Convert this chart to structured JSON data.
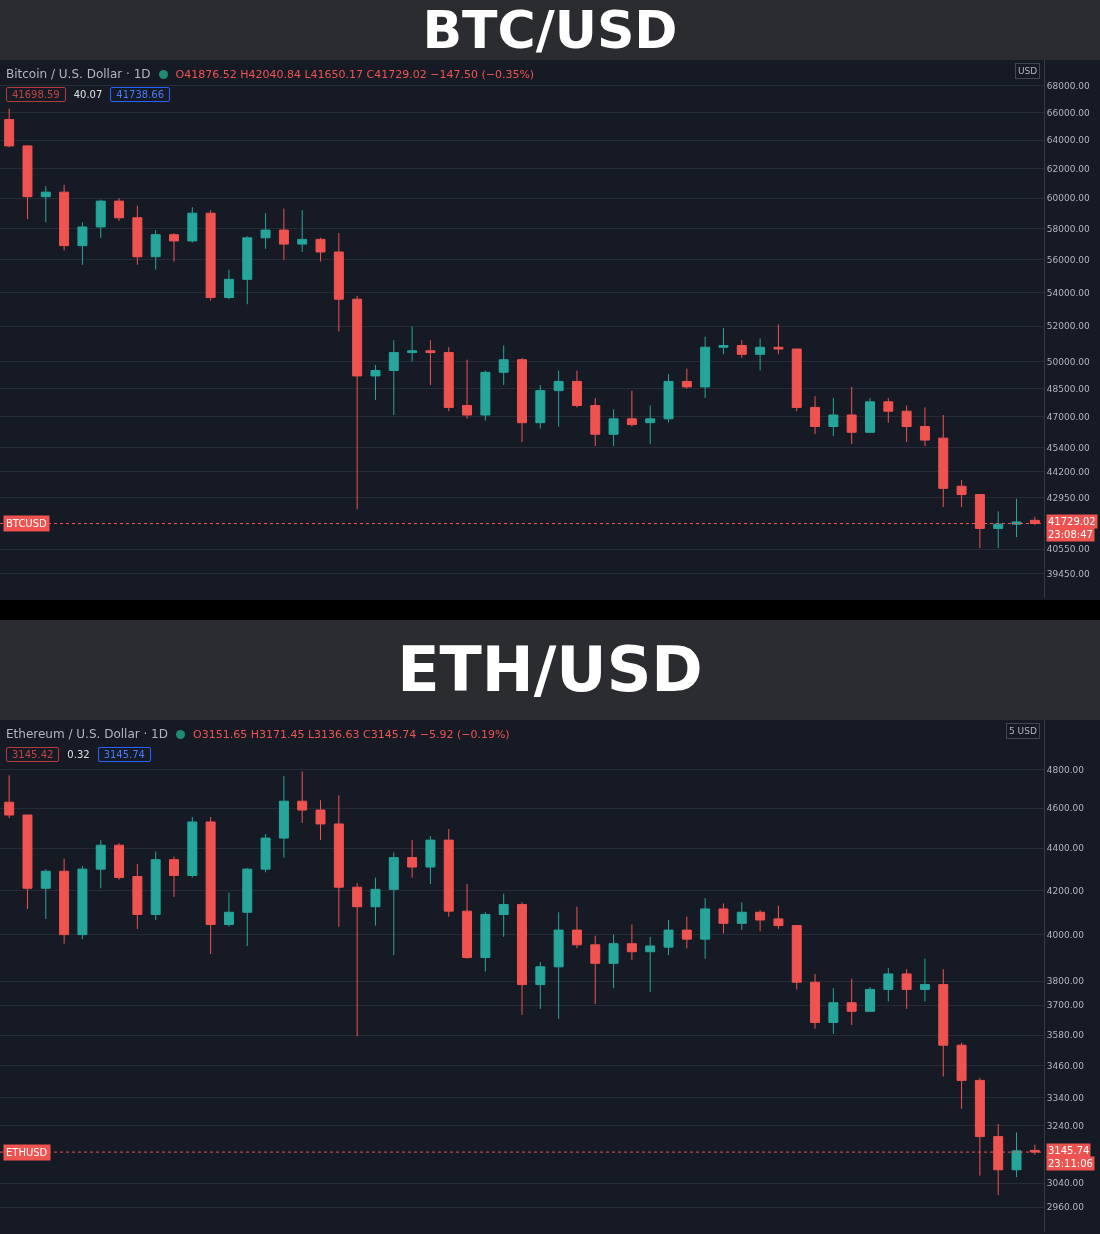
{
  "chart_data": [
    {
      "type": "candlestick",
      "title": "BTC/USD",
      "subtitle": "Bitcoin / U.S. Dollar · 1D",
      "categories": [
        null,
        null,
        null,
        null,
        null,
        null,
        null,
        null,
        null,
        null,
        null,
        null,
        null,
        null,
        null,
        null,
        null,
        null,
        null,
        null,
        null,
        null,
        null,
        null,
        null,
        null,
        null,
        null,
        null,
        null,
        null,
        null,
        null,
        null,
        null,
        null,
        null,
        null,
        null,
        null,
        null,
        null,
        null,
        null,
        null,
        null,
        null,
        null,
        null,
        null,
        null,
        null,
        null,
        null,
        null,
        null,
        null
      ],
      "ohlc": [
        [
          65500,
          66300,
          63500,
          63600
        ],
        [
          63600,
          63650,
          58600,
          60100
        ],
        [
          60100,
          60800,
          58400,
          60400
        ],
        [
          60400,
          60900,
          56600,
          56900
        ],
        [
          56900,
          58400,
          55700,
          58100
        ],
        [
          58100,
          59900,
          57400,
          59800
        ],
        [
          59800,
          60000,
          58500,
          58700
        ],
        [
          58700,
          59500,
          55700,
          56200
        ],
        [
          56200,
          57900,
          55400,
          57600
        ],
        [
          57600,
          57700,
          55900,
          57200
        ],
        [
          57200,
          59400,
          57100,
          59000
        ],
        [
          59000,
          59200,
          53500,
          53700
        ],
        [
          53700,
          55400,
          53600,
          54800
        ],
        [
          54800,
          57500,
          53300,
          57400
        ],
        [
          57400,
          59000,
          56700,
          57900
        ],
        [
          57900,
          59300,
          56000,
          57000
        ],
        [
          57000,
          59200,
          56500,
          57300
        ],
        [
          57300,
          57400,
          55900,
          56500
        ],
        [
          56500,
          57700,
          51700,
          53600
        ],
        [
          53600,
          53800,
          42400,
          49200
        ],
        [
          49200,
          49800,
          47900,
          49500
        ],
        [
          49500,
          51200,
          47100,
          50500
        ],
        [
          50500,
          52000,
          50000,
          50600
        ],
        [
          50600,
          51200,
          48700,
          50500
        ],
        [
          50500,
          50800,
          47300,
          47500
        ],
        [
          47600,
          50100,
          46900,
          47100
        ],
        [
          47100,
          49500,
          46800,
          49400
        ],
        [
          49400,
          50900,
          48700,
          50100
        ],
        [
          50100,
          50200,
          45700,
          46700
        ],
        [
          46700,
          48700,
          46400,
          48400
        ],
        [
          48400,
          49500,
          46500,
          48900
        ],
        [
          48900,
          49500,
          47500,
          47600
        ],
        [
          47600,
          48000,
          45500,
          46100
        ],
        [
          46100,
          47400,
          45500,
          46900
        ],
        [
          46900,
          48400,
          46500,
          46600
        ],
        [
          46700,
          47600,
          45600,
          46900
        ],
        [
          46900,
          49300,
          46700,
          48900
        ],
        [
          48900,
          49600,
          48500,
          48600
        ],
        [
          48600,
          51400,
          48000,
          50800
        ],
        [
          50800,
          51900,
          50400,
          50900
        ],
        [
          50900,
          51200,
          50200,
          50400
        ],
        [
          50400,
          51300,
          49500,
          50800
        ],
        [
          50800,
          52100,
          50400,
          50700
        ],
        [
          50700,
          50700,
          47300,
          47500
        ],
        [
          47500,
          48100,
          46100,
          46500
        ],
        [
          46500,
          48000,
          46000,
          47100
        ],
        [
          47100,
          48600,
          45600,
          46200
        ],
        [
          46200,
          48000,
          46200,
          47800
        ],
        [
          47800,
          48000,
          46700,
          47300
        ],
        [
          47300,
          47600,
          45700,
          46500
        ],
        [
          46500,
          47500,
          45500,
          45800
        ],
        [
          45900,
          47100,
          42500,
          43400
        ],
        [
          43500,
          43800,
          42500,
          43100
        ],
        [
          43100,
          43100,
          40600,
          41500
        ],
        [
          41500,
          42300,
          40600,
          41700
        ],
        [
          41700,
          42900,
          41100,
          41800
        ],
        [
          41876.52,
          42040.84,
          41650.17,
          41729.02
        ]
      ],
      "colors": [
        "#ef5350",
        "#ef5350",
        "#26a69a",
        "#ef5350",
        "#26a69a",
        "#26a69a",
        "#ef5350",
        "#ef5350",
        "#26a69a",
        "#ef5350",
        "#26a69a",
        "#ef5350",
        "#26a69a",
        "#26a69a",
        "#26a69a",
        "#ef5350",
        "#26a69a",
        "#ef5350",
        "#ef5350",
        "#ef5350",
        "#26a69a",
        "#26a69a",
        "#26a69a",
        "#ef5350",
        "#ef5350",
        "#ef5350",
        "#26a69a",
        "#26a69a",
        "#ef5350",
        "#26a69a",
        "#26a69a",
        "#ef5350",
        "#ef5350",
        "#26a69a",
        "#ef5350",
        "#26a69a",
        "#26a69a",
        "#ef5350",
        "#26a69a",
        "#26a69a",
        "#ef5350",
        "#26a69a",
        "#ef5350",
        "#ef5350",
        "#ef5350",
        "#26a69a",
        "#ef5350",
        "#26a69a",
        "#ef5350",
        "#ef5350",
        "#ef5350",
        "#ef5350",
        "#ef5350",
        "#ef5350",
        "#26a69a",
        "#26a69a",
        "#ef5350"
      ],
      "log": true,
      "ylim": [
        38400,
        70000
      ],
      "yticks": [
        {
          "value": 68000,
          "label": "68000.00"
        },
        {
          "value": 66000,
          "label": "66000.00"
        },
        {
          "value": 64000,
          "label": "64000.00"
        },
        {
          "value": 62000,
          "label": "62000.00"
        },
        {
          "value": 60000,
          "label": "60000.00"
        },
        {
          "value": 58000,
          "label": "58000.00"
        },
        {
          "value": 56000,
          "label": "56000.00"
        },
        {
          "value": 54000,
          "label": "54000.00"
        },
        {
          "value": 52000,
          "label": "52000.00"
        },
        {
          "value": 50000,
          "label": "50000.00"
        },
        {
          "value": 48500,
          "label": "48500.00"
        },
        {
          "value": 47000,
          "label": "47000.00"
        },
        {
          "value": 45400,
          "label": "45400.00"
        },
        {
          "value": 44200,
          "label": "44200.00"
        },
        {
          "value": 42950,
          "label": "42950.00"
        },
        {
          "value": 40550,
          "label": "40550.00"
        },
        {
          "value": 39450,
          "label": "39450.00"
        }
      ],
      "grid": "y",
      "tick_labels": "y",
      "ref_lines": [
        {
          "axis": "y",
          "value": 41729.02,
          "label": "BTCUSD",
          "color": "#ef5350",
          "line_style": "dotted"
        }
      ],
      "annotations": [
        "O41876.52 H42040.84 L41650.17 C41729.02 −147.50 (−0.35%)",
        "41698.59",
        "40.07",
        "41738.66",
        "41729.02",
        "23:08:47",
        "USD"
      ]
    },
    {
      "type": "candlestick",
      "title": "ETH/USD",
      "subtitle": "Ethereum / U.S. Dollar · 1D",
      "categories": [
        null,
        null,
        null,
        null,
        null,
        null,
        null,
        null,
        null,
        null,
        null,
        null,
        null,
        null,
        null,
        null,
        null,
        null,
        null,
        null,
        null,
        null,
        null,
        null,
        null,
        null,
        null,
        null,
        null,
        null,
        null,
        null,
        null,
        null,
        null,
        null,
        null,
        null,
        null,
        null,
        null,
        null,
        null,
        null,
        null,
        null,
        null,
        null,
        null,
        null,
        null,
        null,
        null,
        null,
        null,
        null,
        null
      ],
      "ohlc": [
        [
          4630,
          4770,
          4550,
          4565
        ],
        [
          4565,
          4565,
          4115,
          4210
        ],
        [
          4210,
          4300,
          4070,
          4290
        ],
        [
          4290,
          4350,
          3960,
          4000
        ],
        [
          4000,
          4315,
          3980,
          4300
        ],
        [
          4300,
          4440,
          4210,
          4415
        ],
        [
          4415,
          4425,
          4250,
          4260
        ],
        [
          4265,
          4325,
          4025,
          4090
        ],
        [
          4090,
          4385,
          4065,
          4345
        ],
        [
          4345,
          4360,
          4170,
          4270
        ],
        [
          4270,
          4555,
          4260,
          4530
        ],
        [
          4530,
          4555,
          3915,
          4045
        ],
        [
          4045,
          4190,
          4035,
          4100
        ],
        [
          4100,
          4305,
          3950,
          4300
        ],
        [
          4300,
          4470,
          4285,
          4450
        ],
        [
          4450,
          4765,
          4355,
          4635
        ],
        [
          4635,
          4790,
          4525,
          4590
        ],
        [
          4590,
          4640,
          4440,
          4520
        ],
        [
          4520,
          4665,
          4035,
          4215
        ],
        [
          4215,
          4235,
          3575,
          4125
        ],
        [
          4125,
          4260,
          4040,
          4205
        ],
        [
          4205,
          4380,
          3910,
          4355
        ],
        [
          4355,
          4440,
          4260,
          4310
        ],
        [
          4310,
          4460,
          4230,
          4440
        ],
        [
          4440,
          4495,
          4080,
          4105
        ],
        [
          4105,
          4230,
          3895,
          3900
        ],
        [
          3900,
          4100,
          3840,
          4090
        ],
        [
          4090,
          4185,
          3990,
          4135
        ],
        [
          4135,
          4145,
          3660,
          3785
        ],
        [
          3785,
          3880,
          3685,
          3860
        ],
        [
          3860,
          4100,
          3645,
          4020
        ],
        [
          4020,
          4125,
          3940,
          3955
        ],
        [
          3955,
          3995,
          3705,
          3875
        ],
        [
          3875,
          4000,
          3770,
          3960
        ],
        [
          3960,
          4045,
          3890,
          3925
        ],
        [
          3925,
          3990,
          3755,
          3950
        ],
        [
          3945,
          4065,
          3910,
          4020
        ],
        [
          4020,
          4080,
          3940,
          3980
        ],
        [
          3980,
          4165,
          3895,
          4115
        ],
        [
          4115,
          4140,
          4005,
          4050
        ],
        [
          4050,
          4145,
          4020,
          4100
        ],
        [
          4100,
          4110,
          4015,
          4065
        ],
        [
          4070,
          4130,
          4025,
          4040
        ],
        [
          4040,
          4040,
          3765,
          3795
        ],
        [
          3795,
          3830,
          3605,
          3630
        ],
        [
          3630,
          3770,
          3585,
          3710
        ],
        [
          3710,
          3810,
          3620,
          3675
        ],
        [
          3675,
          3775,
          3675,
          3765
        ],
        [
          3765,
          3855,
          3715,
          3830
        ],
        [
          3830,
          3850,
          3685,
          3765
        ],
        [
          3765,
          3895,
          3715,
          3785
        ],
        [
          3785,
          3850,
          3420,
          3540
        ],
        [
          3540,
          3550,
          3300,
          3405
        ],
        [
          3405,
          3415,
          3065,
          3200
        ],
        [
          3200,
          3245,
          3000,
          3085
        ],
        [
          3085,
          3215,
          3060,
          3150
        ],
        [
          3151.65,
          3171.45,
          3136.63,
          3145.74
        ]
      ],
      "colors": [
        "#ef5350",
        "#ef5350",
        "#26a69a",
        "#ef5350",
        "#26a69a",
        "#26a69a",
        "#ef5350",
        "#ef5350",
        "#26a69a",
        "#ef5350",
        "#26a69a",
        "#ef5350",
        "#26a69a",
        "#26a69a",
        "#26a69a",
        "#26a69a",
        "#ef5350",
        "#ef5350",
        "#ef5350",
        "#ef5350",
        "#26a69a",
        "#26a69a",
        "#ef5350",
        "#26a69a",
        "#ef5350",
        "#ef5350",
        "#26a69a",
        "#26a69a",
        "#ef5350",
        "#26a69a",
        "#26a69a",
        "#ef5350",
        "#ef5350",
        "#26a69a",
        "#ef5350",
        "#26a69a",
        "#26a69a",
        "#ef5350",
        "#26a69a",
        "#ef5350",
        "#26a69a",
        "#ef5350",
        "#ef5350",
        "#ef5350",
        "#ef5350",
        "#26a69a",
        "#ef5350",
        "#26a69a",
        "#26a69a",
        "#ef5350",
        "#26a69a",
        "#ef5350",
        "#ef5350",
        "#ef5350",
        "#ef5350",
        "#26a69a",
        "#ef5350"
      ],
      "log": true,
      "ylim": [
        2880,
        5070
      ],
      "yticks": [
        {
          "value": 4800,
          "label": "4800.00"
        },
        {
          "value": 4600,
          "label": "4600.00"
        },
        {
          "value": 4400,
          "label": "4400.00"
        },
        {
          "value": 4200,
          "label": "4200.00"
        },
        {
          "value": 4000,
          "label": "4000.00"
        },
        {
          "value": 3800,
          "label": "3800.00"
        },
        {
          "value": 3700,
          "label": "3700.00"
        },
        {
          "value": 3580,
          "label": "3580.00"
        },
        {
          "value": 3460,
          "label": "3460.00"
        },
        {
          "value": 3340,
          "label": "3340.00"
        },
        {
          "value": 3240,
          "label": "3240.00"
        },
        {
          "value": 3040,
          "label": "3040.00"
        },
        {
          "value": 2960,
          "label": "2960.00"
        }
      ],
      "grid": "y",
      "tick_labels": "y",
      "ref_lines": [
        {
          "axis": "y",
          "value": 3145.74,
          "label": "ETHUSD",
          "color": "#ef5350",
          "line_style": "dotted"
        }
      ],
      "annotations": [
        "O3151.65 H3171.45 L3136.63 C3145.74 −5.92 (−0.19%)",
        "3145.42",
        "0.32",
        "3145.74",
        "3145.74",
        "23:11:06",
        "5 USD"
      ]
    }
  ]
}
